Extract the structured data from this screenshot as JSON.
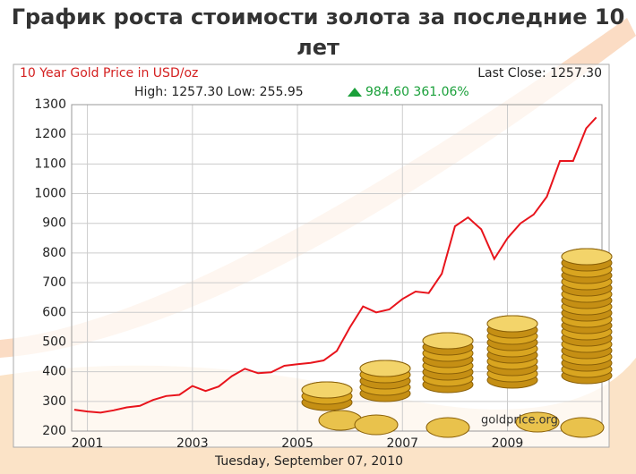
{
  "title": "График роста стоимости золота за последние 10 лет",
  "chart_data": {
    "type": "line",
    "title": "10 Year Gold Price in USD/oz",
    "last_close": "Last Close: 1257.30",
    "high_low": "High: 1257.30 Low: 255.95",
    "change": "984.60 361.06%",
    "date": "Tuesday, September 07, 2010",
    "watermark": "goldprice.org",
    "x": [
      2000.75,
      2001,
      2001.25,
      2001.5,
      2001.75,
      2002,
      2002.25,
      2002.5,
      2002.75,
      2003,
      2003.25,
      2003.5,
      2003.75,
      2004,
      2004.25,
      2004.5,
      2004.75,
      2005,
      2005.25,
      2005.5,
      2005.75,
      2006,
      2006.25,
      2006.5,
      2006.75,
      2007,
      2007.25,
      2007.5,
      2007.75,
      2008,
      2008.25,
      2008.5,
      2008.75,
      2009,
      2009.25,
      2009.5,
      2009.75,
      2010,
      2010.25,
      2010.5,
      2010.69
    ],
    "series": [
      {
        "name": "Gold",
        "color": "#e8141c",
        "values": [
          272,
          266,
          262,
          270,
          280,
          285,
          305,
          318,
          322,
          352,
          335,
          350,
          385,
          410,
          395,
          398,
          420,
          425,
          430,
          438,
          470,
          550,
          620,
          600,
          610,
          645,
          670,
          665,
          730,
          890,
          920,
          880,
          780,
          850,
          900,
          930,
          990,
          1110,
          1110,
          1220,
          1257
        ]
      }
    ],
    "xlim": [
      2000.7,
      2010.8
    ],
    "xticks": [
      2001,
      2003,
      2005,
      2007,
      2009
    ],
    "ylim": [
      200,
      1300
    ],
    "yticks": [
      200,
      300,
      400,
      500,
      600,
      700,
      800,
      900,
      1000,
      1100,
      1200,
      1300
    ],
    "grid": true
  }
}
